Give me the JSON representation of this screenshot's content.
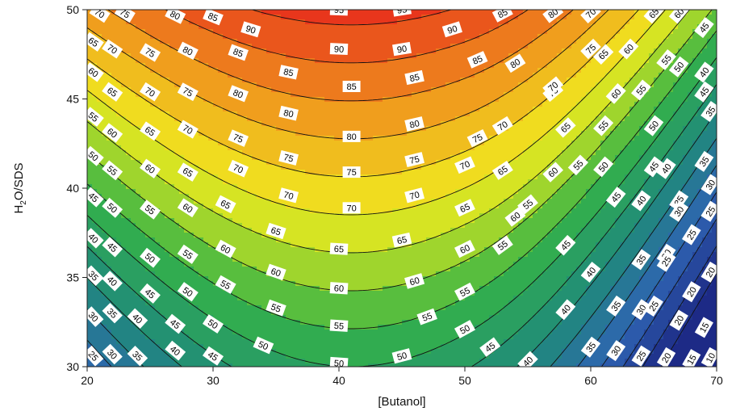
{
  "chart_data": {
    "type": "heatmap",
    "subtype": "filled-contour",
    "title": "",
    "xlabel": "[Butanol]",
    "ylabel_main": "H",
    "ylabel_sub": "2",
    "ylabel_rest": "O/SDS",
    "xlim": [
      20,
      70
    ],
    "ylim": [
      30,
      50
    ],
    "x_ticks": [
      20,
      30,
      40,
      50,
      60,
      70
    ],
    "y_ticks": [
      30,
      35,
      40,
      45,
      50
    ],
    "x_tick_labels": [
      "20",
      "30",
      "40",
      "50",
      "60",
      "70"
    ],
    "y_tick_labels": [
      "30",
      "35",
      "40",
      "45",
      "50"
    ],
    "contour_levels": [
      10,
      15,
      20,
      25,
      30,
      35,
      40,
      45,
      50,
      55,
      60,
      65,
      70,
      75,
      80,
      85,
      90,
      95
    ],
    "surface_model": {
      "x_peak": 41,
      "z_ridge_at_y30": 50,
      "z_ridge_slope_per_y": 2.35,
      "curvature_at_y30": 0.055,
      "curvature_at_y50": 0.032,
      "right_extra_coefficient": 0.028,
      "right_extra_start_x": 50
    },
    "contour_labels": [
      {
        "text": "95",
        "x": 40,
        "y": 50
      },
      {
        "text": "95",
        "x": 45,
        "y": 50
      },
      {
        "text": "90",
        "x": 33,
        "y": 48.9
      },
      {
        "text": "90",
        "x": 40,
        "y": 47.8
      },
      {
        "text": "90",
        "x": 45,
        "y": 47.8
      },
      {
        "text": "90",
        "x": 49,
        "y": 48.9
      },
      {
        "text": "85",
        "x": 30,
        "y": 49.6
      },
      {
        "text": "85",
        "x": 32,
        "y": 47.6
      },
      {
        "text": "85",
        "x": 36,
        "y": 46.5
      },
      {
        "text": "85",
        "x": 41,
        "y": 45.7
      },
      {
        "text": "85",
        "x": 46,
        "y": 46.2
      },
      {
        "text": "85",
        "x": 51,
        "y": 47.2
      },
      {
        "text": "85",
        "x": 53,
        "y": 49.8
      },
      {
        "text": "80",
        "x": 27,
        "y": 49.7
      },
      {
        "text": "80",
        "x": 28,
        "y": 47.7
      },
      {
        "text": "80",
        "x": 32,
        "y": 45.3
      },
      {
        "text": "80",
        "x": 36,
        "y": 44.2
      },
      {
        "text": "80",
        "x": 41,
        "y": 42.9
      },
      {
        "text": "80",
        "x": 46,
        "y": 43.6
      },
      {
        "text": "80",
        "x": 54,
        "y": 47
      },
      {
        "text": "80",
        "x": 57,
        "y": 49.8
      },
      {
        "text": "75",
        "x": 23,
        "y": 49.8
      },
      {
        "text": "75",
        "x": 25,
        "y": 47.6
      },
      {
        "text": "75",
        "x": 28,
        "y": 45.4
      },
      {
        "text": "75",
        "x": 32,
        "y": 42.8
      },
      {
        "text": "75",
        "x": 36,
        "y": 41.7
      },
      {
        "text": "75",
        "x": 41,
        "y": 40.9
      },
      {
        "text": "75",
        "x": 46,
        "y": 41.6
      },
      {
        "text": "75",
        "x": 51,
        "y": 42.8
      },
      {
        "text": "75",
        "x": 57,
        "y": 45.4
      },
      {
        "text": "75",
        "x": 60,
        "y": 47.8
      },
      {
        "text": "70",
        "x": 21,
        "y": 49.8
      },
      {
        "text": "70",
        "x": 22,
        "y": 47.8
      },
      {
        "text": "70",
        "x": 25,
        "y": 45.4
      },
      {
        "text": "70",
        "x": 28,
        "y": 43.3
      },
      {
        "text": "70",
        "x": 32,
        "y": 41.1
      },
      {
        "text": "70",
        "x": 36,
        "y": 39.6
      },
      {
        "text": "70",
        "x": 41,
        "y": 38.9
      },
      {
        "text": "70",
        "x": 46,
        "y": 39.6
      },
      {
        "text": "70",
        "x": 50,
        "y": 41.3
      },
      {
        "text": "70",
        "x": 53,
        "y": 43.5
      },
      {
        "text": "70",
        "x": 57,
        "y": 45.7
      },
      {
        "text": "70",
        "x": 60,
        "y": 49.8
      },
      {
        "text": "65",
        "x": 20.5,
        "y": 48.2
      },
      {
        "text": "65",
        "x": 22,
        "y": 45.4
      },
      {
        "text": "65",
        "x": 25,
        "y": 43.2
      },
      {
        "text": "65",
        "x": 28,
        "y": 40.9
      },
      {
        "text": "65",
        "x": 31,
        "y": 39.1
      },
      {
        "text": "65",
        "x": 35,
        "y": 37.6
      },
      {
        "text": "65",
        "x": 40,
        "y": 36.6
      },
      {
        "text": "65",
        "x": 45,
        "y": 37.1
      },
      {
        "text": "65",
        "x": 50,
        "y": 38.9
      },
      {
        "text": "65",
        "x": 53,
        "y": 41
      },
      {
        "text": "65",
        "x": 58,
        "y": 43.4
      },
      {
        "text": "65",
        "x": 61,
        "y": 47.5
      },
      {
        "text": "65",
        "x": 65,
        "y": 49.8
      },
      {
        "text": "60",
        "x": 20.5,
        "y": 46.5
      },
      {
        "text": "60",
        "x": 22,
        "y": 43.1
      },
      {
        "text": "60",
        "x": 25,
        "y": 41.1
      },
      {
        "text": "60",
        "x": 28,
        "y": 38.9
      },
      {
        "text": "60",
        "x": 31,
        "y": 36.6
      },
      {
        "text": "60",
        "x": 35,
        "y": 35.3
      },
      {
        "text": "60",
        "x": 40,
        "y": 34.4
      },
      {
        "text": "60",
        "x": 46,
        "y": 34.8
      },
      {
        "text": "60",
        "x": 50,
        "y": 36.6
      },
      {
        "text": "60",
        "x": 54,
        "y": 38.4
      },
      {
        "text": "60",
        "x": 57,
        "y": 40.9
      },
      {
        "text": "60",
        "x": 62,
        "y": 45.3
      },
      {
        "text": "60",
        "x": 63,
        "y": 47.8
      },
      {
        "text": "60",
        "x": 67,
        "y": 49.8
      },
      {
        "text": "55",
        "x": 20.5,
        "y": 44
      },
      {
        "text": "55",
        "x": 22,
        "y": 41
      },
      {
        "text": "55",
        "x": 25,
        "y": 38.8
      },
      {
        "text": "55",
        "x": 28,
        "y": 36.3
      },
      {
        "text": "55",
        "x": 31,
        "y": 34.6
      },
      {
        "text": "55",
        "x": 35,
        "y": 33.3
      },
      {
        "text": "55",
        "x": 40,
        "y": 32.3
      },
      {
        "text": "55",
        "x": 47,
        "y": 32.8
      },
      {
        "text": "55",
        "x": 50,
        "y": 34.2
      },
      {
        "text": "55",
        "x": 53,
        "y": 36.8
      },
      {
        "text": "55",
        "x": 55,
        "y": 39.1
      },
      {
        "text": "55",
        "x": 59,
        "y": 41.3
      },
      {
        "text": "55",
        "x": 61,
        "y": 43.5
      },
      {
        "text": "55",
        "x": 64,
        "y": 45.5
      },
      {
        "text": "55",
        "x": 66,
        "y": 47.2
      },
      {
        "text": "50",
        "x": 20.5,
        "y": 41.8
      },
      {
        "text": "50",
        "x": 22,
        "y": 38.9
      },
      {
        "text": "50",
        "x": 25,
        "y": 36.1
      },
      {
        "text": "50",
        "x": 28,
        "y": 34.2
      },
      {
        "text": "50",
        "x": 30,
        "y": 32.4
      },
      {
        "text": "50",
        "x": 34,
        "y": 31.2
      },
      {
        "text": "50",
        "x": 40,
        "y": 30.2
      },
      {
        "text": "50",
        "x": 45,
        "y": 30.6
      },
      {
        "text": "50",
        "x": 50,
        "y": 32.1
      },
      {
        "text": "50",
        "x": 61,
        "y": 41.2
      },
      {
        "text": "50",
        "x": 65,
        "y": 43.5
      },
      {
        "text": "50",
        "x": 67,
        "y": 46.8
      },
      {
        "text": "45",
        "x": 20.5,
        "y": 39.5
      },
      {
        "text": "45",
        "x": 22,
        "y": 36.7
      },
      {
        "text": "45",
        "x": 25,
        "y": 34.1
      },
      {
        "text": "45",
        "x": 27,
        "y": 32.4
      },
      {
        "text": "45",
        "x": 30,
        "y": 30.6
      },
      {
        "text": "45",
        "x": 52,
        "y": 31.1
      },
      {
        "text": "45",
        "x": 58,
        "y": 36.8
      },
      {
        "text": "45",
        "x": 62,
        "y": 39.5
      },
      {
        "text": "45",
        "x": 65,
        "y": 41.2
      },
      {
        "text": "45",
        "x": 69,
        "y": 45.4
      },
      {
        "text": "45",
        "x": 69,
        "y": 49
      },
      {
        "text": "40",
        "x": 20.5,
        "y": 37.2
      },
      {
        "text": "40",
        "x": 22,
        "y": 34.8
      },
      {
        "text": "40",
        "x": 24,
        "y": 32.7
      },
      {
        "text": "40",
        "x": 27,
        "y": 30.9
      },
      {
        "text": "40",
        "x": 55,
        "y": 30.3
      },
      {
        "text": "40",
        "x": 58,
        "y": 33.2
      },
      {
        "text": "40",
        "x": 60,
        "y": 35.3
      },
      {
        "text": "40",
        "x": 64,
        "y": 39.3
      },
      {
        "text": "40",
        "x": 66,
        "y": 41.1
      },
      {
        "text": "40",
        "x": 69,
        "y": 46.5
      },
      {
        "text": "35",
        "x": 20.5,
        "y": 35.1
      },
      {
        "text": "35",
        "x": 22,
        "y": 33
      },
      {
        "text": "35",
        "x": 24,
        "y": 30.6
      },
      {
        "text": "35",
        "x": 60,
        "y": 31.1
      },
      {
        "text": "35",
        "x": 62,
        "y": 33.4
      },
      {
        "text": "35",
        "x": 64,
        "y": 36
      },
      {
        "text": "35",
        "x": 67,
        "y": 39.3
      },
      {
        "text": "35",
        "x": 69,
        "y": 41.5
      },
      {
        "text": "35",
        "x": 69.5,
        "y": 44.3
      },
      {
        "text": "30",
        "x": 20.5,
        "y": 32.8
      },
      {
        "text": "30",
        "x": 22,
        "y": 30.7
      },
      {
        "text": "30",
        "x": 62,
        "y": 30.9
      },
      {
        "text": "30",
        "x": 64,
        "y": 33.2
      },
      {
        "text": "30",
        "x": 66,
        "y": 36.3
      },
      {
        "text": "30",
        "x": 67,
        "y": 38.7
      },
      {
        "text": "30",
        "x": 69.5,
        "y": 40.2
      },
      {
        "text": "25",
        "x": 20.5,
        "y": 30.6
      },
      {
        "text": "25",
        "x": 64,
        "y": 30.6
      },
      {
        "text": "25",
        "x": 65,
        "y": 33.4
      },
      {
        "text": "25",
        "x": 66,
        "y": 35.9
      },
      {
        "text": "25",
        "x": 68,
        "y": 37.4
      },
      {
        "text": "25",
        "x": 69.5,
        "y": 38.7
      },
      {
        "text": "20",
        "x": 66,
        "y": 30.5
      },
      {
        "text": "20",
        "x": 67,
        "y": 32.6
      },
      {
        "text": "20",
        "x": 68,
        "y": 34.2
      },
      {
        "text": "20",
        "x": 69.5,
        "y": 35.3
      },
      {
        "text": "15",
        "x": 68,
        "y": 30.4
      },
      {
        "text": "15",
        "x": 69,
        "y": 32.2
      },
      {
        "text": "10",
        "x": 69.5,
        "y": 30.5
      }
    ],
    "colors": {
      "low": "#1d2a86",
      "mid_low": "#2f63b2",
      "teal": "#1f8a7a",
      "green": "#35b347",
      "yellow_green": "#a6d72b",
      "yellow": "#f0eb1f",
      "orange": "#f0a21d",
      "high": "#e8361c"
    },
    "grid": false,
    "legend": "none"
  }
}
